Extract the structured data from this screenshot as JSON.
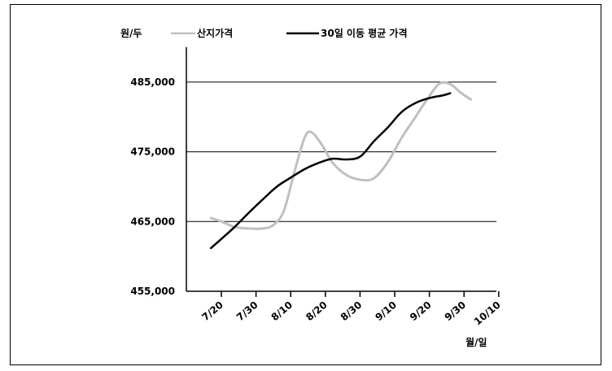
{
  "chart_data": {
    "type": "line",
    "ylabel": "원/두",
    "xlabel": "월/일",
    "ylim": [
      455000,
      490000
    ],
    "yticks": [
      455000,
      465000,
      475000,
      485000
    ],
    "ytick_labels": [
      "455,000",
      "465,000",
      "475,000",
      "485,000"
    ],
    "categories": [
      "7/20",
      "7/30",
      "8/10",
      "8/20",
      "8/30",
      "9/10",
      "9/20",
      "9/30",
      "10/10"
    ],
    "grid": "horizontal",
    "legend_position": "top",
    "colors": {
      "series_0": "#c0c0c0",
      "series_1": "#000000"
    },
    "series": [
      {
        "name": "산지가격",
        "points": [
          [
            -0.3,
            465500
          ],
          [
            0.0,
            465000
          ],
          [
            0.4,
            464200
          ],
          [
            0.8,
            464000
          ],
          [
            1.2,
            464000
          ],
          [
            1.5,
            464500
          ],
          [
            1.8,
            466500
          ],
          [
            2.1,
            472000
          ],
          [
            2.4,
            477000
          ],
          [
            2.6,
            477800
          ],
          [
            2.9,
            476000
          ],
          [
            3.2,
            473500
          ],
          [
            3.6,
            471700
          ],
          [
            4.0,
            471000
          ],
          [
            4.4,
            471200
          ],
          [
            4.8,
            473500
          ],
          [
            5.2,
            477000
          ],
          [
            5.6,
            480000
          ],
          [
            6.0,
            483000
          ],
          [
            6.3,
            484800
          ],
          [
            6.6,
            484700
          ],
          [
            6.9,
            483500
          ],
          [
            7.1,
            482800
          ],
          [
            7.2,
            482500
          ]
        ]
      },
      {
        "name": "30일 이동 평균 가격",
        "points": [
          [
            -0.3,
            461200
          ],
          [
            0.0,
            462500
          ],
          [
            0.4,
            464300
          ],
          [
            0.8,
            466300
          ],
          [
            1.2,
            468200
          ],
          [
            1.6,
            470000
          ],
          [
            2.0,
            471300
          ],
          [
            2.4,
            472500
          ],
          [
            2.8,
            473400
          ],
          [
            3.2,
            474000
          ],
          [
            3.6,
            473900
          ],
          [
            4.0,
            474300
          ],
          [
            4.4,
            476500
          ],
          [
            4.8,
            478500
          ],
          [
            5.2,
            480700
          ],
          [
            5.6,
            482000
          ],
          [
            6.0,
            482700
          ],
          [
            6.4,
            483100
          ],
          [
            6.6,
            483400
          ]
        ]
      }
    ]
  }
}
